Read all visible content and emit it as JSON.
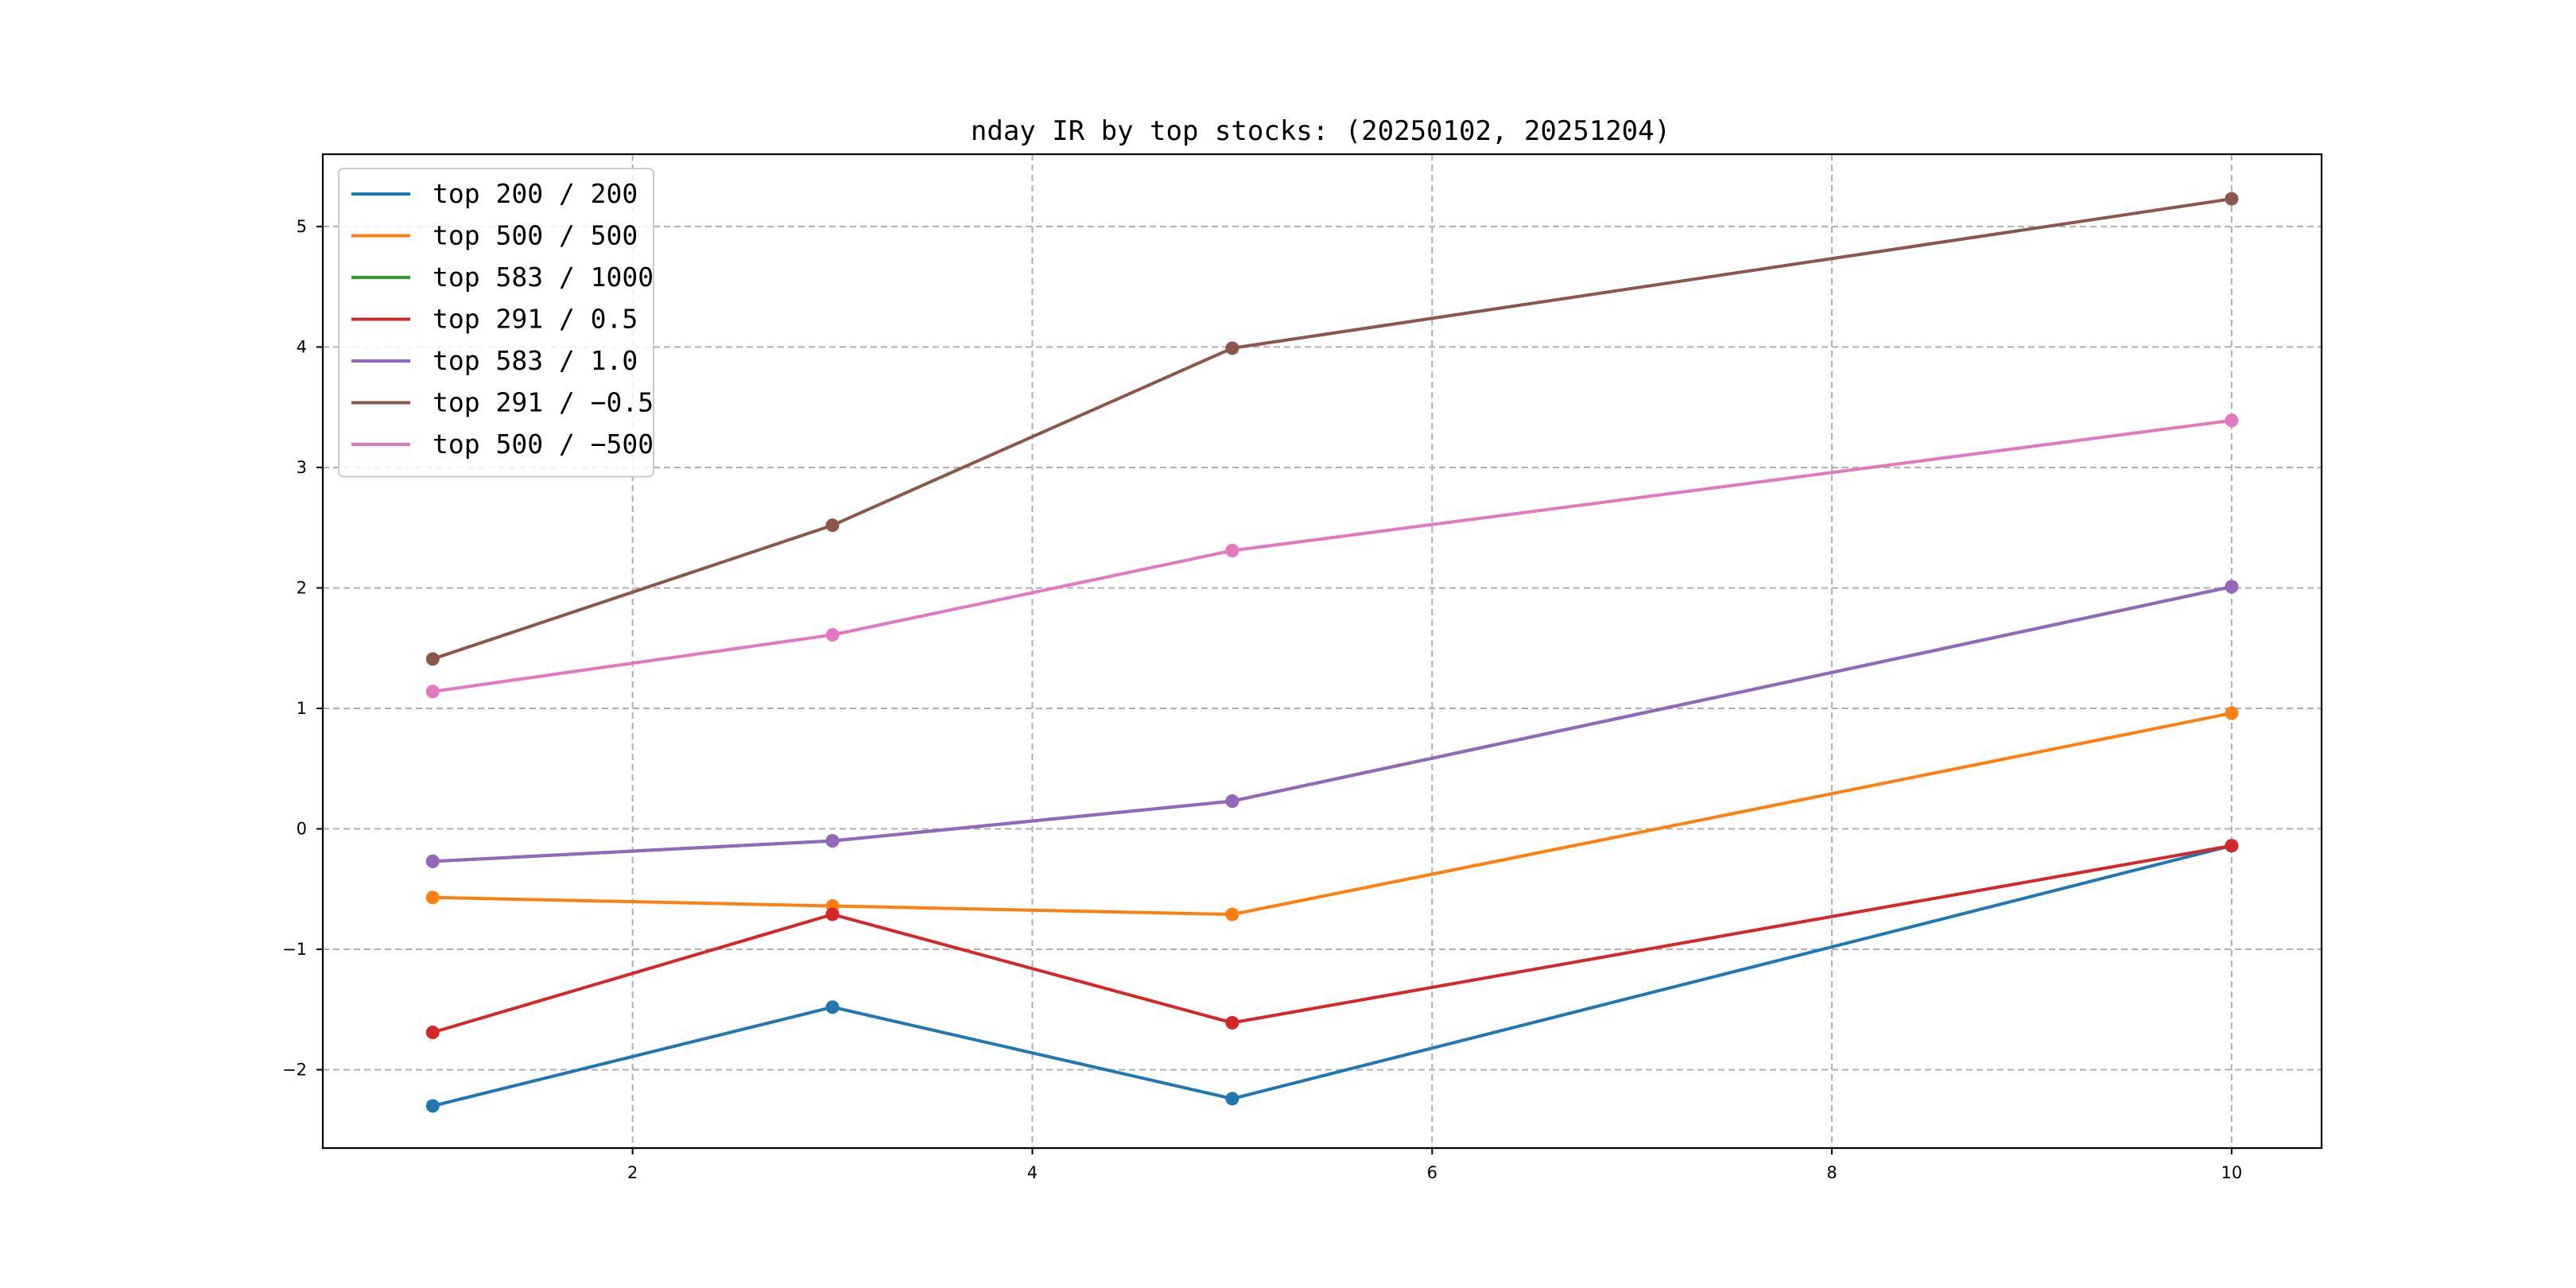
{
  "chart_data": {
    "type": "line",
    "title": "nday IR by top stocks: (20250102, 20251204)",
    "xlabel": "",
    "ylabel": "",
    "x": [
      1,
      3,
      5,
      10
    ],
    "xlim": [
      0.45,
      10.45
    ],
    "ylim": [
      -2.65,
      5.6
    ],
    "xticks": [
      2,
      4,
      6,
      8,
      10
    ],
    "yticks": [
      -2,
      -1,
      0,
      1,
      2,
      3,
      4,
      5
    ],
    "xtick_labels": [
      "2",
      "4",
      "6",
      "8",
      "10"
    ],
    "ytick_labels": [
      "−2",
      "−1",
      "0",
      "1",
      "2",
      "3",
      "4",
      "5"
    ],
    "grid": true,
    "legend_position": "top-left",
    "series": [
      {
        "name": "top 200 / 200",
        "color": "#1f77b4",
        "values": [
          -2.3,
          -1.48,
          -2.24,
          -0.14
        ]
      },
      {
        "name": "top 500 / 500",
        "color": "#ff7f0e",
        "values": [
          -0.57,
          -0.64,
          -0.71,
          0.96
        ]
      },
      {
        "name": "top 583 / 1000",
        "color": "#2ca02c",
        "values": [
          -0.27,
          -0.1,
          0.23,
          2.01
        ]
      },
      {
        "name": "top 291 / 0.5",
        "color": "#d62728",
        "values": [
          -1.69,
          -0.71,
          -1.61,
          -0.14
        ]
      },
      {
        "name": "top 583 / 1.0",
        "color": "#9467bd",
        "values": [
          -0.27,
          -0.1,
          0.23,
          2.01
        ]
      },
      {
        "name": "top 291 / −0.5",
        "color": "#8c564b",
        "values": [
          1.41,
          2.52,
          3.99,
          5.23
        ]
      },
      {
        "name": "top 500 / −500",
        "color": "#e377c2",
        "values": [
          1.14,
          1.61,
          2.31,
          3.39
        ]
      }
    ]
  }
}
